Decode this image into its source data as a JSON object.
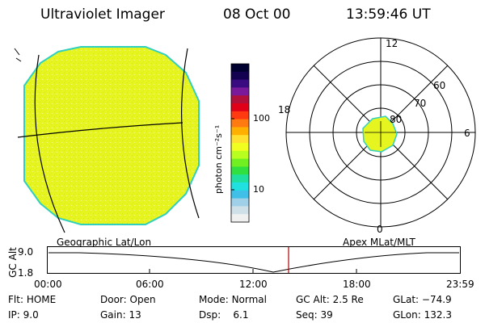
{
  "header": {
    "instrument": "Ultraviolet Imager",
    "date": "08 Oct 00",
    "time": "13:59:46 UT"
  },
  "colorbar": {
    "unit_label": "photon cm⁻²s⁻¹",
    "tick_100": "100",
    "tick_10": "10",
    "colors_top_to_bottom": [
      "#000030",
      "#140050",
      "#3a0a80",
      "#7a1a9a",
      "#b0103a",
      "#e00018",
      "#ff3a10",
      "#ff7a10",
      "#ffb000",
      "#ffe030",
      "#f0ff20",
      "#b8ff20",
      "#70f020",
      "#30e040",
      "#20e0a0",
      "#20e0e0",
      "#40c0e8",
      "#a0d0e8",
      "#d0e0e8",
      "#f0f0f0"
    ]
  },
  "polar_plot": {
    "mlt_labels": {
      "top": "12",
      "right": "6",
      "bottom": "0",
      "left": "18"
    },
    "lat_labels": [
      "60",
      "70",
      "80"
    ]
  },
  "disk": {
    "fill_color": "#e6f51f",
    "rim_color": "#30d0c0"
  },
  "timeline": {
    "left_caption": "Geographic Lat/Lon",
    "right_caption": "Apex MLat/MLT",
    "y_axis_title": "GC Alt",
    "y_top": "9.0",
    "y_bottom": "1.8",
    "time_ticks": [
      "00:00",
      "06:00",
      "12:00",
      "18:00",
      "23:59"
    ],
    "current_marker_color": "#b00000"
  },
  "status": {
    "row1": [
      {
        "key": "Flt:",
        "val": "HOME"
      },
      {
        "key": "Door:",
        "val": "Open"
      },
      {
        "key": "Mode:",
        "val": "Normal"
      },
      {
        "key": "GC Alt:",
        "val": "2.5 Re"
      },
      {
        "key": "GLat:",
        "val": "−74.9"
      }
    ],
    "row2": [
      {
        "key": "IP:",
        "val": "9.0"
      },
      {
        "key": "Gain:",
        "val": "13"
      },
      {
        "key": "Dsp:",
        "val": "6.1"
      },
      {
        "key": "Seq:",
        "val": "39"
      },
      {
        "key": "GLon:",
        "val": "132.3"
      }
    ]
  }
}
